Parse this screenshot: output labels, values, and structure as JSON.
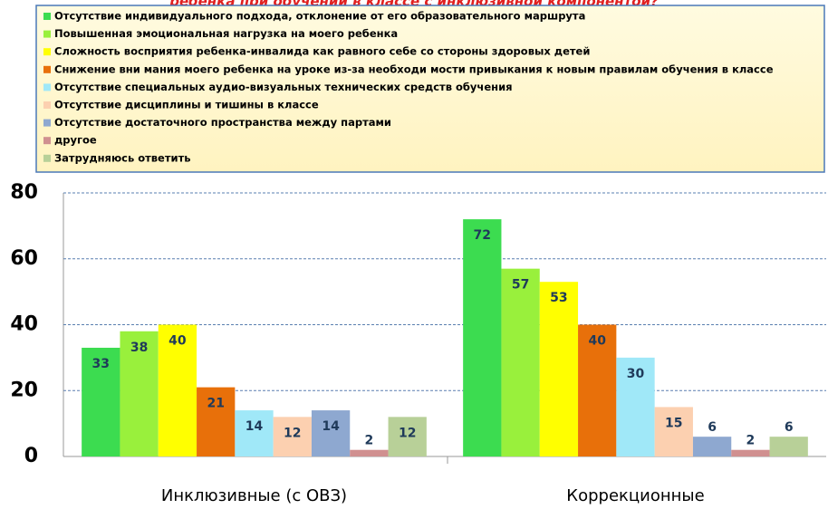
{
  "chart_data": {
    "type": "bar",
    "title": "ребенка при обучении в классе с инклюзивной компонентой?",
    "categories": [
      "Инклюзивные (с ОВЗ)",
      "Коррекционные"
    ],
    "series": [
      {
        "name": "Отсутствие индивидуального подхода, отклонение от его образовательного маршрута",
        "color": "#3cdc50",
        "values": [
          33,
          72
        ]
      },
      {
        "name": "Повышенная эмоциональная нагрузка на моего ребенка",
        "color": "#99f03c",
        "values": [
          38,
          57
        ]
      },
      {
        "name": "Сложность восприятия ребенка-инвалида как равного себе со стороны здоровых детей",
        "color": "#ffff00",
        "values": [
          40,
          53
        ]
      },
      {
        "name": "Снижение вни мания моего ребенка на уроке из-за необходи мости привыкания к новым правилам обучения в классе",
        "color": "#e8700a",
        "values": [
          21,
          40
        ]
      },
      {
        "name": "Отсутствие специальных аудио-визуальных технических средств обучения",
        "color": "#a0e8f8",
        "values": [
          14,
          30
        ]
      },
      {
        "name": "Отсутствие дисциплины и тишины в классе",
        "color": "#fcd0b0",
        "values": [
          12,
          15
        ]
      },
      {
        "name": "Отсутствие достаточного пространства между партами",
        "color": "#8ea8d0",
        "values": [
          14,
          6
        ]
      },
      {
        "name": "другое",
        "color": "#d09090",
        "values": [
          2,
          2
        ]
      },
      {
        "name": "Затрудняюсь ответить",
        "color": "#b8d098",
        "values": [
          12,
          6
        ]
      }
    ],
    "ylim": [
      0,
      80
    ],
    "yticks": [
      0,
      20,
      40,
      60,
      80
    ],
    "grid": true
  }
}
